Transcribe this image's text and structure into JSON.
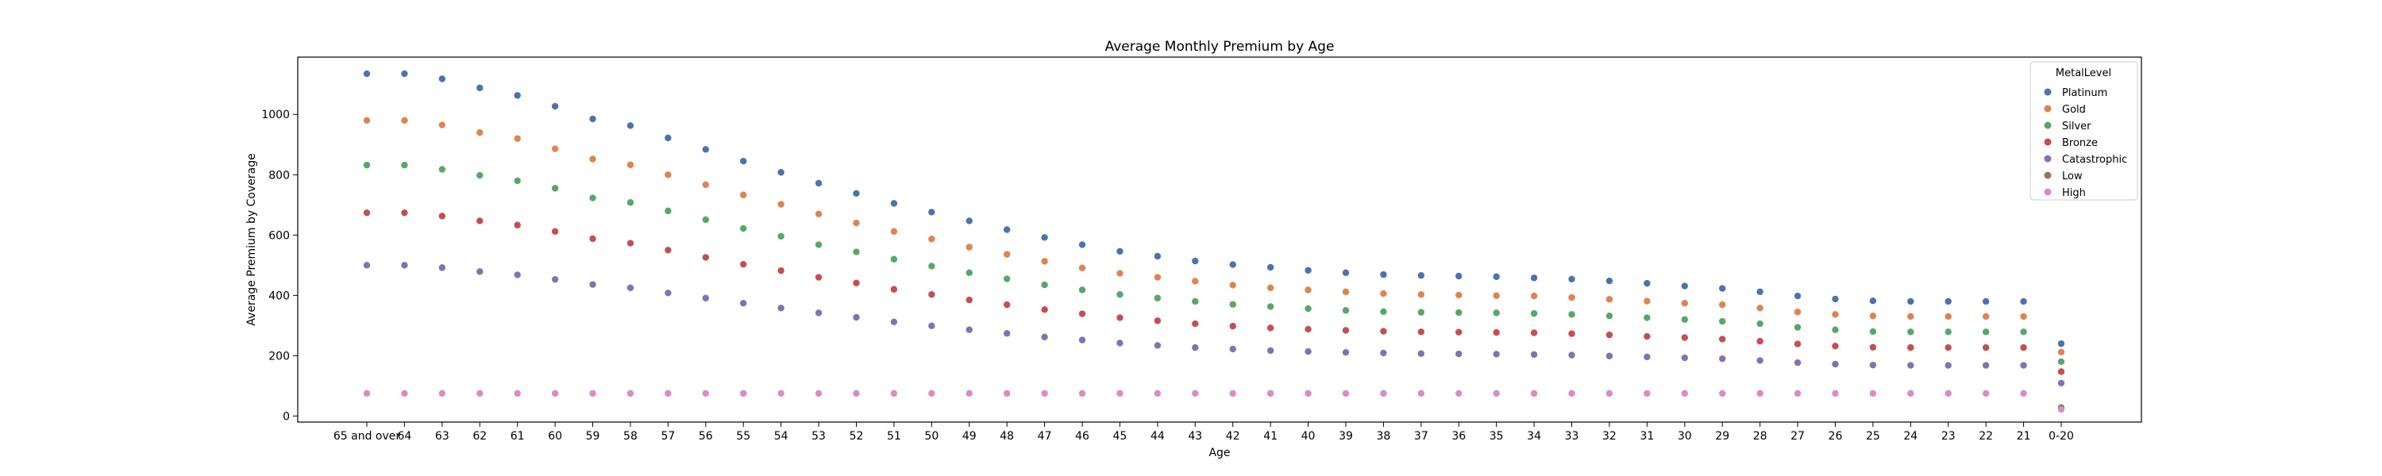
{
  "chart_data": {
    "type": "scatter",
    "title": "Average Monthly Premium by Age",
    "xlabel": "Age",
    "ylabel": "Average Premium by Coverage",
    "categories": [
      "65 and over",
      "64",
      "63",
      "62",
      "61",
      "60",
      "59",
      "58",
      "57",
      "56",
      "55",
      "54",
      "53",
      "52",
      "51",
      "50",
      "49",
      "48",
      "47",
      "46",
      "45",
      "44",
      "43",
      "42",
      "41",
      "40",
      "39",
      "38",
      "37",
      "36",
      "35",
      "34",
      "33",
      "32",
      "31",
      "30",
      "29",
      "28",
      "27",
      "26",
      "25",
      "24",
      "23",
      "22",
      "21",
      "0-20"
    ],
    "yticks": [
      0,
      200,
      400,
      600,
      800,
      1000
    ],
    "ylim": [
      -20,
      1190
    ],
    "grid": false,
    "legend": {
      "title": "MetalLevel",
      "placement": "top-right"
    },
    "series": [
      {
        "name": "Platinum",
        "color": "#4c72b0",
        "values": [
          1135,
          1135,
          1118,
          1088,
          1063,
          1027,
          985,
          963,
          922,
          884,
          845,
          808,
          772,
          738,
          705,
          676,
          647,
          618,
          592,
          568,
          546,
          530,
          514,
          502,
          493,
          483,
          475,
          469,
          466,
          464,
          462,
          458,
          454,
          448,
          440,
          431,
          423,
          412,
          398,
          388,
          382,
          380,
          380,
          380,
          380,
          240
        ]
      },
      {
        "name": "Gold",
        "color": "#dd8452",
        "values": [
          980,
          980,
          965,
          940,
          920,
          886,
          852,
          833,
          800,
          767,
          733,
          702,
          670,
          640,
          612,
          587,
          560,
          536,
          513,
          491,
          473,
          460,
          447,
          434,
          425,
          418,
          412,
          406,
          403,
          401,
          399,
          398,
          393,
          387,
          381,
          374,
          369,
          358,
          345,
          337,
          332,
          330,
          330,
          330,
          330,
          212
        ]
      },
      {
        "name": "Silver",
        "color": "#55a868",
        "values": [
          832,
          832,
          818,
          798,
          780,
          755,
          723,
          708,
          680,
          651,
          622,
          596,
          568,
          544,
          520,
          497,
          475,
          455,
          435,
          418,
          403,
          391,
          380,
          370,
          363,
          356,
          350,
          346,
          344,
          343,
          342,
          340,
          337,
          332,
          326,
          320,
          314,
          306,
          294,
          286,
          280,
          279,
          279,
          279,
          279,
          180
        ]
      },
      {
        "name": "Bronze",
        "color": "#c44e52",
        "values": [
          674,
          674,
          663,
          647,
          633,
          612,
          588,
          573,
          550,
          526,
          503,
          482,
          460,
          441,
          420,
          403,
          385,
          369,
          353,
          339,
          326,
          316,
          306,
          298,
          292,
          288,
          284,
          281,
          279,
          278,
          277,
          276,
          273,
          269,
          264,
          260,
          255,
          248,
          239,
          232,
          228,
          227,
          227,
          227,
          227,
          147
        ]
      },
      {
        "name": "Catastrophic",
        "color": "#8172b3",
        "values": [
          500,
          500,
          492,
          479,
          468,
          453,
          436,
          425,
          408,
          391,
          374,
          358,
          342,
          327,
          312,
          299,
          286,
          274,
          262,
          252,
          242,
          234,
          227,
          222,
          217,
          214,
          211,
          209,
          207,
          206,
          205,
          204,
          202,
          199,
          196,
          193,
          190,
          184,
          177,
          172,
          169,
          168,
          168,
          168,
          168,
          109
        ]
      },
      {
        "name": "Low",
        "color": "#937860",
        "values": [
          null,
          null,
          null,
          null,
          null,
          null,
          null,
          null,
          null,
          null,
          null,
          null,
          null,
          null,
          null,
          null,
          null,
          null,
          null,
          null,
          null,
          null,
          null,
          null,
          null,
          null,
          null,
          null,
          null,
          null,
          null,
          null,
          null,
          null,
          null,
          null,
          null,
          null,
          null,
          null,
          null,
          null,
          null,
          null,
          null,
          28
        ]
      },
      {
        "name": "High",
        "color": "#da8bc3",
        "values": [
          75,
          75,
          75,
          75,
          75,
          75,
          75,
          75,
          75,
          75,
          75,
          75,
          75,
          75,
          75,
          75,
          75,
          75,
          75,
          75,
          75,
          75,
          75,
          75,
          75,
          75,
          75,
          75,
          75,
          75,
          75,
          75,
          75,
          75,
          75,
          75,
          75,
          75,
          75,
          75,
          75,
          75,
          75,
          75,
          75,
          22
        ]
      }
    ]
  }
}
